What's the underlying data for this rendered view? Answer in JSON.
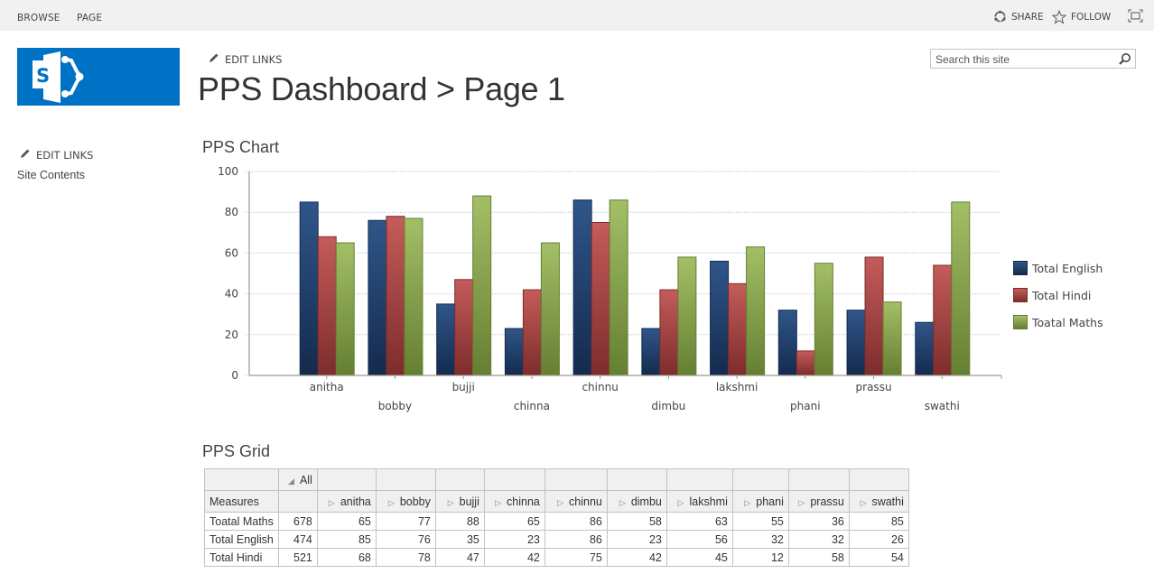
{
  "topbar": {
    "tabs": [
      "BROWSE",
      "PAGE"
    ],
    "share_label": "SHARE",
    "follow_label": "FOLLOW",
    "icons": {
      "share": "share-icon",
      "follow": "star-icon",
      "focus": "focus-mode-icon"
    }
  },
  "header": {
    "logo": "sharepoint-logo",
    "edit_links_label": "EDIT LINKS",
    "title": "PPS Dashboard > Page 1",
    "search_placeholder": "Search this site"
  },
  "quicklaunch": {
    "edit_links_label": "EDIT LINKS",
    "items": [
      "Site Contents"
    ]
  },
  "chart_section": {
    "title": "PPS Chart"
  },
  "grid_section": {
    "title": "PPS Grid"
  },
  "colors": {
    "english": "#1f3d6b",
    "hindi": "#a8403f",
    "maths": "#86a348",
    "brand": "#0072c6"
  },
  "chart_data": {
    "type": "bar",
    "title": "PPS Chart",
    "xlabel": "",
    "ylabel": "",
    "ylim": [
      0,
      100
    ],
    "yticks": [
      0,
      20,
      40,
      60,
      80,
      100
    ],
    "grid": true,
    "legend_position": "right",
    "categories": [
      "anitha",
      "bobby",
      "bujji",
      "chinna",
      "chinnu",
      "dimbu",
      "lakshmi",
      "phani",
      "prassu",
      "swathi"
    ],
    "series": [
      {
        "name": "Total English",
        "values": [
          85,
          76,
          35,
          23,
          86,
          23,
          56,
          32,
          32,
          26
        ]
      },
      {
        "name": "Total Hindi",
        "values": [
          68,
          78,
          47,
          42,
          75,
          42,
          45,
          12,
          58,
          54
        ]
      },
      {
        "name": "Toatal Maths",
        "values": [
          65,
          77,
          88,
          65,
          86,
          58,
          63,
          55,
          36,
          85
        ]
      }
    ]
  },
  "grid": {
    "all_label": "All",
    "measures_label": "Measures",
    "columns": [
      "anitha",
      "bobby",
      "bujji",
      "chinna",
      "chinnu",
      "dimbu",
      "lakshmi",
      "phani",
      "prassu",
      "swathi"
    ],
    "rows": [
      {
        "label": "Toatal Maths",
        "total": "678",
        "values": [
          "65",
          "77",
          "88",
          "65",
          "86",
          "58",
          "63",
          "55",
          "36",
          "85"
        ]
      },
      {
        "label": "Total English",
        "total": "474",
        "values": [
          "85",
          "76",
          "35",
          "23",
          "86",
          "23",
          "56",
          "32",
          "32",
          "26"
        ]
      },
      {
        "label": "Total Hindi",
        "total": "521",
        "values": [
          "68",
          "78",
          "47",
          "42",
          "75",
          "42",
          "45",
          "12",
          "58",
          "54"
        ]
      }
    ]
  }
}
